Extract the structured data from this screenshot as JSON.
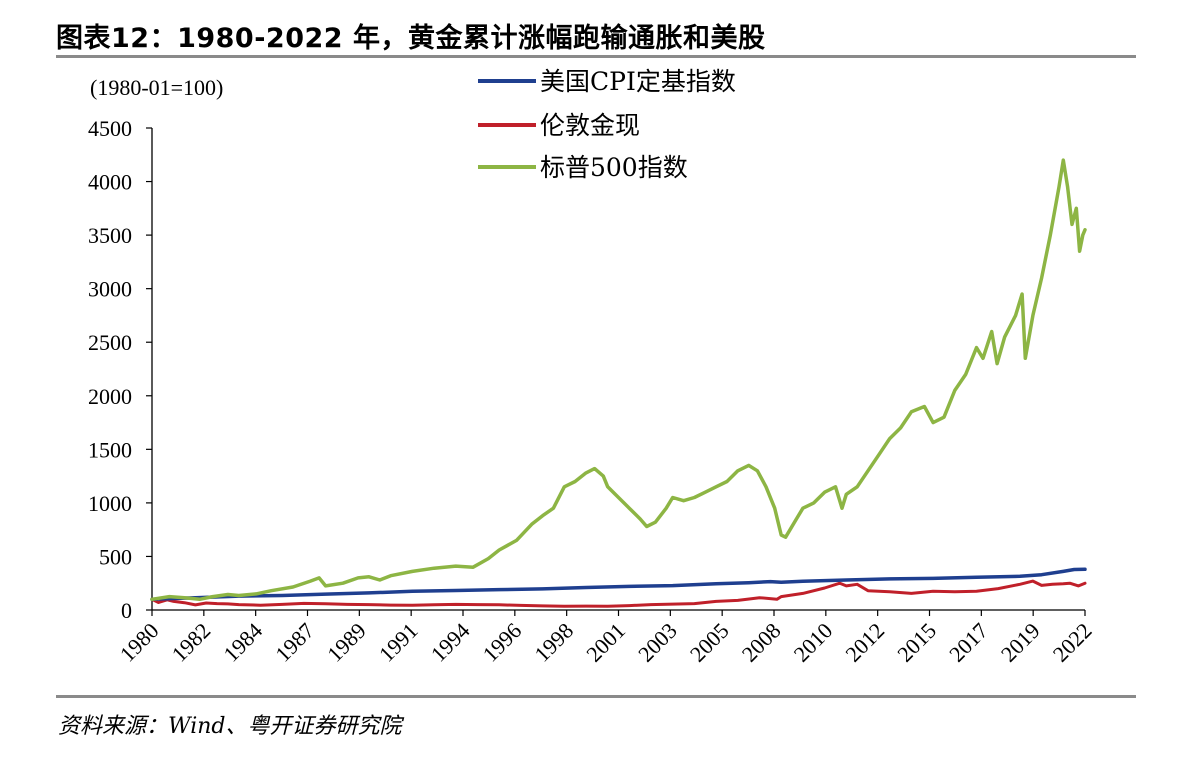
{
  "header": {
    "title": "图表12：1980-2022 年，黄金累计涨幅跑输通胀和美股"
  },
  "footer": {
    "source": "资料来源：Wind、粤开证券研究院"
  },
  "chart_data": {
    "type": "line",
    "unit_label": "(1980-01=100)",
    "ylim": [
      0,
      4500
    ],
    "yticks": [
      0,
      500,
      1000,
      1500,
      2000,
      2500,
      3000,
      3500,
      4000,
      4500
    ],
    "xlim": [
      1980.0,
      2023.0
    ],
    "xtick_labels": [
      "1980",
      "1982",
      "1984",
      "1987",
      "1989",
      "1991",
      "1994",
      "1996",
      "1998",
      "2001",
      "2003",
      "2005",
      "2008",
      "2010",
      "2012",
      "2015",
      "2017",
      "2019",
      "2022"
    ],
    "grid": false,
    "legend_position": "top-center",
    "series": [
      {
        "name": "美国CPI定基指数",
        "color": "#1f3f8f",
        "points": [
          [
            1980,
            100
          ],
          [
            1982,
            115
          ],
          [
            1984,
            130
          ],
          [
            1986,
            135
          ],
          [
            1988,
            148
          ],
          [
            1990,
            160
          ],
          [
            1992,
            175
          ],
          [
            1994,
            182
          ],
          [
            1996,
            190
          ],
          [
            1998,
            197
          ],
          [
            2000,
            210
          ],
          [
            2002,
            220
          ],
          [
            2004,
            228
          ],
          [
            2006,
            245
          ],
          [
            2007.5,
            255
          ],
          [
            2008.5,
            265
          ],
          [
            2009,
            260
          ],
          [
            2010,
            268
          ],
          [
            2012,
            280
          ],
          [
            2014,
            290
          ],
          [
            2016,
            295
          ],
          [
            2018,
            305
          ],
          [
            2020,
            315
          ],
          [
            2021,
            330
          ],
          [
            2022,
            360
          ],
          [
            2022.5,
            378
          ],
          [
            2023,
            380
          ]
        ]
      },
      {
        "name": "伦敦金现",
        "color": "#c0202a",
        "points": [
          [
            1980,
            100
          ],
          [
            1980.3,
            70
          ],
          [
            1980.7,
            95
          ],
          [
            1981,
            80
          ],
          [
            1981.5,
            68
          ],
          [
            1982,
            48
          ],
          [
            1982.5,
            65
          ],
          [
            1983,
            60
          ],
          [
            1983.5,
            57
          ],
          [
            1984,
            50
          ],
          [
            1985,
            45
          ],
          [
            1986,
            52
          ],
          [
            1987,
            62
          ],
          [
            1988,
            58
          ],
          [
            1989,
            52
          ],
          [
            1990,
            50
          ],
          [
            1991,
            46
          ],
          [
            1992,
            44
          ],
          [
            1993,
            49
          ],
          [
            1994,
            52
          ],
          [
            1995,
            50
          ],
          [
            1996,
            49
          ],
          [
            1997,
            43
          ],
          [
            1998,
            38
          ],
          [
            1999,
            35
          ],
          [
            2000,
            36
          ],
          [
            2001,
            35
          ],
          [
            2002,
            41
          ],
          [
            2003,
            50
          ],
          [
            2004,
            55
          ],
          [
            2005,
            60
          ],
          [
            2006,
            80
          ],
          [
            2007,
            90
          ],
          [
            2008,
            115
          ],
          [
            2008.8,
            100
          ],
          [
            2009,
            125
          ],
          [
            2010,
            155
          ],
          [
            2011,
            205
          ],
          [
            2011.7,
            250
          ],
          [
            2012,
            225
          ],
          [
            2012.5,
            240
          ],
          [
            2013,
            180
          ],
          [
            2014,
            170
          ],
          [
            2015,
            155
          ],
          [
            2016,
            175
          ],
          [
            2017,
            170
          ],
          [
            2018,
            175
          ],
          [
            2019,
            200
          ],
          [
            2020,
            240
          ],
          [
            2020.6,
            270
          ],
          [
            2021,
            230
          ],
          [
            2021.5,
            240
          ],
          [
            2022,
            245
          ],
          [
            2022.3,
            250
          ],
          [
            2022.7,
            225
          ],
          [
            2023,
            250
          ]
        ]
      },
      {
        "name": "标普500指数",
        "color": "#8db544",
        "points": [
          [
            1980,
            100
          ],
          [
            1980.8,
            125
          ],
          [
            1981.5,
            115
          ],
          [
            1982.2,
            100
          ],
          [
            1982.8,
            125
          ],
          [
            1983.5,
            145
          ],
          [
            1984,
            135
          ],
          [
            1984.8,
            150
          ],
          [
            1985.5,
            180
          ],
          [
            1986.5,
            215
          ],
          [
            1987.3,
            270
          ],
          [
            1987.7,
            300
          ],
          [
            1988,
            225
          ],
          [
            1988.8,
            250
          ],
          [
            1989.5,
            300
          ],
          [
            1990,
            310
          ],
          [
            1990.5,
            280
          ],
          [
            1991,
            320
          ],
          [
            1992,
            360
          ],
          [
            1993,
            390
          ],
          [
            1994,
            410
          ],
          [
            1994.8,
            400
          ],
          [
            1995.5,
            480
          ],
          [
            1996,
            560
          ],
          [
            1996.8,
            650
          ],
          [
            1997.5,
            800
          ],
          [
            1998,
            880
          ],
          [
            1998.5,
            950
          ],
          [
            1999,
            1150
          ],
          [
            1999.5,
            1200
          ],
          [
            2000,
            1280
          ],
          [
            2000.4,
            1320
          ],
          [
            2000.8,
            1250
          ],
          [
            2001,
            1150
          ],
          [
            2001.5,
            1050
          ],
          [
            2002,
            950
          ],
          [
            2002.5,
            850
          ],
          [
            2002.8,
            780
          ],
          [
            2003.2,
            820
          ],
          [
            2003.7,
            950
          ],
          [
            2004,
            1050
          ],
          [
            2004.5,
            1020
          ],
          [
            2005,
            1050
          ],
          [
            2005.5,
            1100
          ],
          [
            2006,
            1150
          ],
          [
            2006.5,
            1200
          ],
          [
            2007,
            1300
          ],
          [
            2007.5,
            1350
          ],
          [
            2007.9,
            1300
          ],
          [
            2008.3,
            1150
          ],
          [
            2008.7,
            950
          ],
          [
            2009,
            700
          ],
          [
            2009.2,
            680
          ],
          [
            2009.7,
            850
          ],
          [
            2010,
            950
          ],
          [
            2010.5,
            1000
          ],
          [
            2011,
            1100
          ],
          [
            2011.5,
            1150
          ],
          [
            2011.8,
            950
          ],
          [
            2012,
            1080
          ],
          [
            2012.5,
            1150
          ],
          [
            2013,
            1300
          ],
          [
            2013.5,
            1450
          ],
          [
            2014,
            1600
          ],
          [
            2014.5,
            1700
          ],
          [
            2015,
            1850
          ],
          [
            2015.6,
            1900
          ],
          [
            2016,
            1750
          ],
          [
            2016.5,
            1800
          ],
          [
            2017,
            2050
          ],
          [
            2017.5,
            2200
          ],
          [
            2018,
            2450
          ],
          [
            2018.3,
            2350
          ],
          [
            2018.7,
            2600
          ],
          [
            2018.95,
            2300
          ],
          [
            2019.3,
            2550
          ],
          [
            2019.8,
            2750
          ],
          [
            2020.1,
            2950
          ],
          [
            2020.25,
            2350
          ],
          [
            2020.6,
            2750
          ],
          [
            2021,
            3100
          ],
          [
            2021.4,
            3500
          ],
          [
            2021.8,
            3950
          ],
          [
            2022,
            4200
          ],
          [
            2022.2,
            3950
          ],
          [
            2022.4,
            3600
          ],
          [
            2022.6,
            3750
          ],
          [
            2022.75,
            3350
          ],
          [
            2022.9,
            3500
          ],
          [
            2023,
            3550
          ]
        ]
      }
    ]
  }
}
